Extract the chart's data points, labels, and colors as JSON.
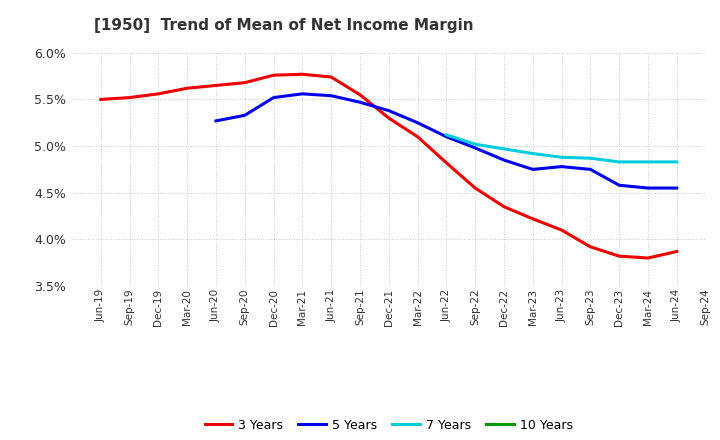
{
  "title": "[1950]  Trend of Mean of Net Income Margin",
  "ylim": [
    3.5,
    6.0
  ],
  "yticks": [
    3.5,
    4.0,
    4.5,
    5.0,
    5.5,
    6.0
  ],
  "background_color": "#ffffff",
  "grid_color": "#c8c8c8",
  "x_labels": [
    "Jun-19",
    "Sep-19",
    "Dec-19",
    "Mar-20",
    "Jun-20",
    "Sep-20",
    "Dec-20",
    "Mar-21",
    "Jun-21",
    "Sep-21",
    "Dec-21",
    "Mar-22",
    "Jun-22",
    "Sep-22",
    "Dec-22",
    "Mar-23",
    "Jun-23",
    "Sep-23",
    "Dec-23",
    "Mar-24",
    "Jun-24",
    "Sep-24"
  ],
  "series": {
    "3 Years": {
      "color": "#ee0000",
      "values": [
        5.5,
        5.52,
        5.56,
        5.62,
        5.65,
        5.68,
        5.76,
        5.77,
        5.74,
        5.55,
        5.3,
        5.1,
        4.82,
        4.55,
        4.35,
        4.22,
        4.1,
        3.92,
        3.82,
        3.8,
        3.87,
        null
      ]
    },
    "5 Years": {
      "color": "#0000ee",
      "values": [
        null,
        null,
        null,
        null,
        5.27,
        5.33,
        5.52,
        5.56,
        5.54,
        5.47,
        5.38,
        5.25,
        5.1,
        4.98,
        4.85,
        4.75,
        4.78,
        4.75,
        4.58,
        4.55,
        4.55,
        null
      ]
    },
    "7 Years": {
      "color": "#00ccdd",
      "values": [
        null,
        null,
        null,
        null,
        null,
        null,
        null,
        null,
        null,
        null,
        null,
        null,
        5.12,
        5.02,
        4.97,
        4.92,
        4.88,
        4.87,
        4.83,
        4.83,
        4.83,
        null
      ]
    },
    "10 Years": {
      "color": "#009900",
      "values": [
        null,
        null,
        null,
        null,
        null,
        null,
        null,
        null,
        null,
        null,
        null,
        null,
        null,
        null,
        null,
        null,
        null,
        null,
        null,
        null,
        null,
        null
      ]
    }
  },
  "legend_order": [
    "3 Years",
    "5 Years",
    "7 Years",
    "10 Years"
  ]
}
